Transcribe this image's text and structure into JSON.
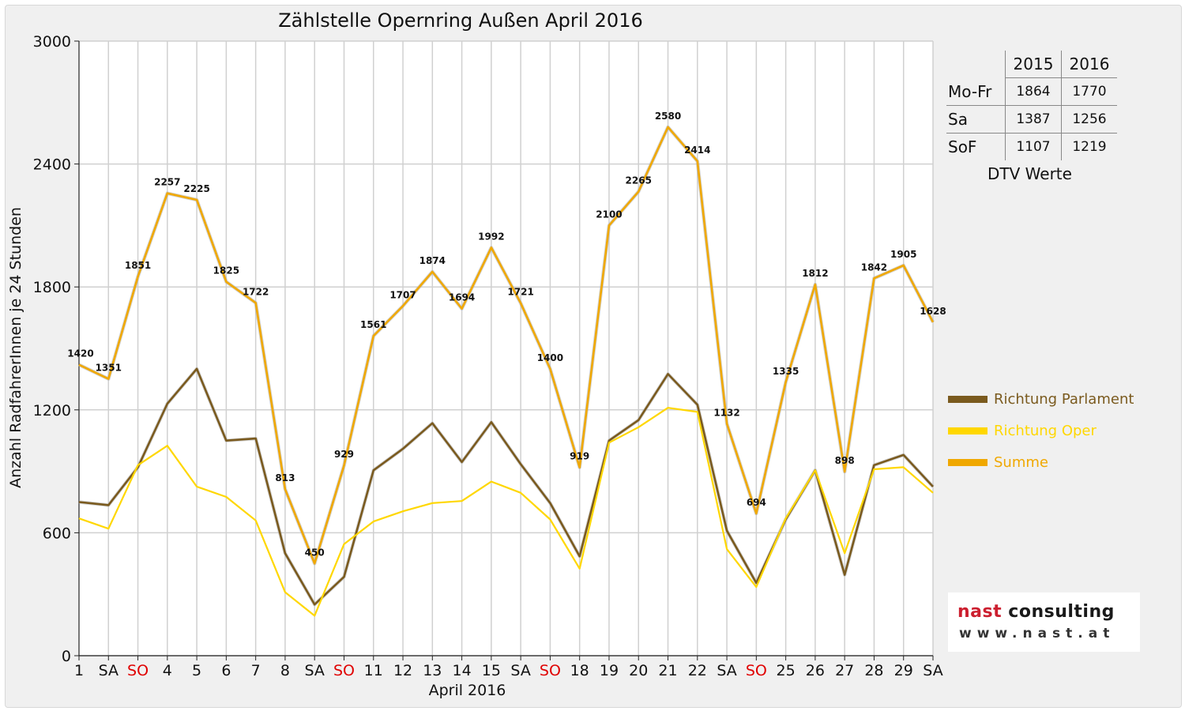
{
  "chart_data": {
    "type": "line",
    "title": "Zählstelle Opernring Außen April 2016",
    "xlabel": "April 2016",
    "ylabel": "Anzahl RadfahrerInnen je 24 Stunden",
    "ylim": [
      0,
      3000
    ],
    "yticks": [
      "0",
      "600",
      "1200",
      "1800",
      "2400",
      "3000"
    ],
    "grid": true,
    "legend_position": "right",
    "categories": [
      "1",
      "SA",
      "SO",
      "4",
      "5",
      "6",
      "7",
      "8",
      "SA",
      "SO",
      "11",
      "12",
      "13",
      "14",
      "15",
      "SA",
      "SO",
      "18",
      "19",
      "20",
      "21",
      "22",
      "SA",
      "SO",
      "25",
      "26",
      "27",
      "28",
      "29",
      "SA"
    ],
    "sunday_flags": [
      false,
      false,
      true,
      false,
      false,
      false,
      false,
      false,
      false,
      true,
      false,
      false,
      false,
      false,
      false,
      false,
      true,
      false,
      false,
      false,
      false,
      false,
      false,
      true,
      false,
      false,
      false,
      false,
      false,
      false
    ],
    "series": [
      {
        "name": "Richtung Parlament",
        "color": "#7a5a1e",
        "values": [
          750,
          735,
          920,
          1230,
          1400,
          1050,
          1060,
          500,
          250,
          385,
          905,
          1010,
          1135,
          945,
          1140,
          935,
          745,
          485,
          1050,
          1150,
          1375,
          1225,
          610,
          355,
          665,
          905,
          395,
          930,
          980,
          825
        ]
      },
      {
        "name": "Richtung Oper",
        "color": "#ffd700",
        "values": [
          670,
          620,
          930,
          1025,
          825,
          775,
          660,
          310,
          195,
          545,
          655,
          705,
          745,
          755,
          850,
          795,
          665,
          425,
          1040,
          1115,
          1210,
          1190,
          520,
          335,
          670,
          905,
          500,
          910,
          920,
          795
        ]
      },
      {
        "name": "Summe",
        "color": "#f0a800",
        "values": [
          1420,
          1351,
          1851,
          2257,
          2225,
          1825,
          1722,
          813,
          450,
          929,
          1561,
          1707,
          1874,
          1694,
          1992,
          1721,
          1400,
          919,
          2100,
          2265,
          2580,
          2414,
          1132,
          694,
          1335,
          1812,
          898,
          1842,
          1905,
          1628
        ]
      }
    ],
    "data_labels": [
      "1420",
      "1351",
      "1851",
      "2257",
      "2225",
      "1825",
      "1722",
      "813",
      "450",
      "929",
      "1561",
      "1707",
      "1874",
      "1694",
      "1992",
      "1721",
      "1400",
      "919",
      "2100",
      "2265",
      "2580",
      "2414",
      "1132",
      "694",
      "1335",
      "1812",
      "898",
      "1842",
      "1905",
      "1628"
    ]
  },
  "dtv_table": {
    "columns": [
      "2015",
      "2016"
    ],
    "rows": [
      {
        "label": "Mo-Fr",
        "values": [
          "1864",
          "1770"
        ]
      },
      {
        "label": "Sa",
        "values": [
          "1387",
          "1256"
        ]
      },
      {
        "label": "SoF",
        "values": [
          "1107",
          "1219"
        ]
      }
    ],
    "caption": "DTV Werte"
  },
  "logo": {
    "name_part1": "nast",
    "name_part2": " consulting",
    "website": "www.nast.at"
  },
  "colors": {
    "sunday": "#e00000",
    "grid": "#d0d0d0",
    "background": "#f0f0f0",
    "plot_area": "#ffffff"
  }
}
